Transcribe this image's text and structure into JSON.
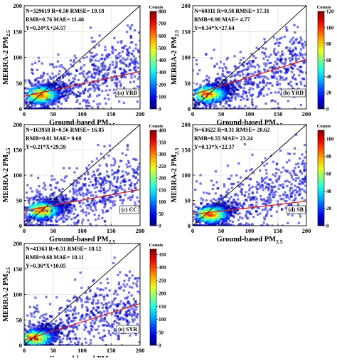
{
  "figure": {
    "xlabel": "Ground-based PM",
    "xlabel_sub": "2.5",
    "ylabel": "MERRA-2 PM",
    "ylabel_sub": "2.5",
    "colorbar_label": "Counts"
  },
  "chart_data": [
    {
      "type": "heatmap",
      "panel_label": "(a) YRB",
      "stats": [
        "N=329619  R=0.50   RMSE= 19.18",
        "RMB=0.76        MAE= 11.46",
        "Y=0.24*X+24.57"
      ],
      "fit": {
        "slope": 0.24,
        "intercept": 24.57
      },
      "xlim": [
        0,
        200
      ],
      "ylim": [
        0,
        200
      ],
      "xticks": [
        0,
        50,
        100,
        150,
        200
      ],
      "yticks": [
        0,
        50,
        100,
        150,
        200
      ],
      "density_center": [
        28,
        27
      ],
      "colorbar": {
        "min": 0,
        "max": 800,
        "ticks": [
          0,
          100,
          200,
          300,
          400,
          500,
          600,
          700,
          800
        ]
      }
    },
    {
      "type": "heatmap",
      "panel_label": "(b) YRD",
      "stats": [
        "N=60311   R=0.58   RMSE= 17.31",
        "RMB=0.90        MAE= 4.77",
        "Y=0.34*X+27.64"
      ],
      "fit": {
        "slope": 0.34,
        "intercept": 27.64
      },
      "xlim": [
        0,
        200
      ],
      "ylim": [
        0,
        200
      ],
      "xticks": [
        0,
        50,
        100,
        150,
        200
      ],
      "yticks": [
        0,
        50,
        100,
        150,
        200
      ],
      "density_center": [
        27,
        28
      ],
      "colorbar": {
        "min": 0,
        "max": 120,
        "ticks": [
          0,
          20,
          40,
          60,
          80,
          100,
          120
        ]
      }
    },
    {
      "type": "heatmap",
      "panel_label": "(c) CC",
      "stats": [
        "N=163958  R=0.56   RMSE= 16.85",
        "RMB=0.81        MAE= 9.60",
        "Y=0.21*X+29.59"
      ],
      "fit": {
        "slope": 0.21,
        "intercept": 29.59
      },
      "xlim": [
        0,
        200
      ],
      "ylim": [
        0,
        200
      ],
      "xticks": [
        0,
        50,
        100,
        150,
        200
      ],
      "yticks": [
        0,
        50,
        100,
        150,
        200
      ],
      "density_center": [
        30,
        30
      ],
      "colorbar": {
        "min": 0,
        "max": 400,
        "ticks": [
          0,
          50,
          100,
          150,
          200,
          250,
          300,
          350,
          400
        ]
      }
    },
    {
      "type": "heatmap",
      "panel_label": "(d) SB",
      "stats": [
        "N=63622   R=0.31   RMSE= 20.62",
        "RMB=0.55        MAE= 23.24",
        "Y=0.13*X+22.37"
      ],
      "fit": {
        "slope": 0.13,
        "intercept": 22.37
      },
      "xlim": [
        0,
        200
      ],
      "ylim": [
        0,
        200
      ],
      "xticks": [
        0,
        50,
        100,
        150,
        200
      ],
      "yticks": [
        0,
        50,
        100,
        150,
        200
      ],
      "density_center": [
        30,
        22
      ],
      "colorbar": {
        "min": 0,
        "max": 110,
        "ticks": [
          0,
          20,
          40,
          60,
          80,
          100
        ]
      }
    },
    {
      "type": "heatmap",
      "panel_label": "(e) SYR",
      "stats": [
        "N=41363   R=0.51   RMSE= 18.12",
        "RMB=0.68        MAE= 10.11",
        "Y=0.36*X+10.05"
      ],
      "fit": {
        "slope": 0.36,
        "intercept": 10.05
      },
      "xlim": [
        0,
        200
      ],
      "ylim": [
        0,
        200
      ],
      "xticks": [
        0,
        50,
        100,
        150,
        200
      ],
      "yticks": [
        0,
        50,
        100,
        150,
        200
      ],
      "density_center": [
        18,
        14
      ],
      "colorbar": {
        "min": 0,
        "max": 370,
        "ticks": [
          0,
          50,
          100,
          150,
          200,
          250,
          300,
          350
        ]
      }
    }
  ]
}
